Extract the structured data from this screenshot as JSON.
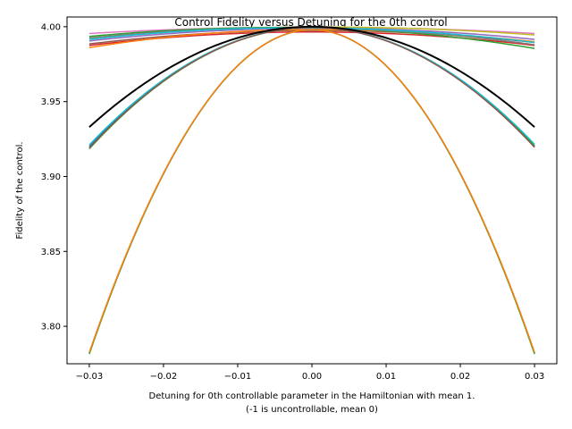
{
  "chart_data": {
    "type": "line",
    "title": "Control Fidelity versus Detuning for the 0th control",
    "xlabel_line1": "Detuning for 0th controllable parameter in the Hamiltonian with mean 1.",
    "xlabel_line2": "(-1 is uncontrollable, mean 0)",
    "ylabel": "Fidelity of the control.",
    "xlim": [
      -0.033,
      0.033
    ],
    "ylim": [
      3.775,
      4.0065
    ],
    "xticks": [
      -0.03,
      -0.02,
      -0.01,
      0.0,
      0.01,
      0.02,
      0.03
    ],
    "xtick_labels": [
      "−0.03",
      "−0.02",
      "−0.01",
      "0.00",
      "0.01",
      "0.02",
      "0.03"
    ],
    "yticks": [
      3.8,
      3.85,
      3.9,
      3.95,
      4.0
    ],
    "ytick_labels": [
      "3.80",
      "3.85",
      "3.90",
      "3.95",
      "4.00"
    ],
    "grid": false,
    "legend": "none",
    "x_range": [
      -0.03,
      0.03
    ],
    "series": [
      {
        "color": "#e377c2",
        "center": 0.0,
        "peak": 3.9997,
        "edge_left": 3.9955,
        "edge_right": 3.9955
      },
      {
        "color": "#bcbd22",
        "center": 0.001,
        "peak": 3.9998,
        "edge_left": 3.9925,
        "edge_right": 3.9945
      },
      {
        "color": "#8c564b",
        "center": 0.0,
        "peak": 3.9975,
        "edge_left": 3.9885,
        "edge_right": 3.9895
      },
      {
        "color": "#d62728",
        "center": 0.0,
        "peak": 3.9965,
        "edge_left": 3.9875,
        "edge_right": 3.9875
      },
      {
        "color": "#ff7f0e",
        "center": -0.0005,
        "peak": 3.998,
        "edge_left": 3.986,
        "edge_right": 3.99
      },
      {
        "color": "#9467bd",
        "center": 0.001,
        "peak": 3.999,
        "edge_left": 3.9905,
        "edge_right": 3.9915
      },
      {
        "color": "#2ca02c",
        "center": -0.004,
        "peak": 3.9995,
        "edge_left": 3.9935,
        "edge_right": 3.9855
      },
      {
        "color": "#7f7f7f",
        "center": -0.003,
        "peak": 3.9992,
        "edge_left": 3.9925,
        "edge_right": 3.988
      },
      {
        "color": "#17becf",
        "center": -0.002,
        "peak": 3.9993,
        "edge_left": 3.9915,
        "edge_right": 3.9895
      },
      {
        "color": "#1f77b4",
        "center": 0.0,
        "peak": 3.9995,
        "edge_left": 3.92,
        "edge_right": 3.92
      },
      {
        "color": "#2ca02c",
        "center": 0.0,
        "peak": 3.9995,
        "edge_left": 3.9185,
        "edge_right": 3.9205
      },
      {
        "color": "#17becf",
        "center": 0.0,
        "peak": 3.9995,
        "edge_left": 3.921,
        "edge_right": 3.9215
      },
      {
        "color": "#8c564b",
        "center": 0.0,
        "peak": 3.9995,
        "edge_left": 3.919,
        "edge_right": 3.9195
      },
      {
        "color": "#000000",
        "center": 0.0,
        "peak": 4.0,
        "edge_left": 3.933,
        "edge_right": 3.933
      },
      {
        "color": "#1f77b4",
        "center": 0.0,
        "peak": 3.998,
        "edge_left": 3.782,
        "edge_right": 3.782
      },
      {
        "color": "#2ca02c",
        "center": 0.0,
        "peak": 3.998,
        "edge_left": 3.7815,
        "edge_right": 3.7815
      },
      {
        "color": "#ff7f0e",
        "center": 0.0,
        "peak": 3.998,
        "edge_left": 3.7825,
        "edge_right": 3.7825
      }
    ]
  }
}
